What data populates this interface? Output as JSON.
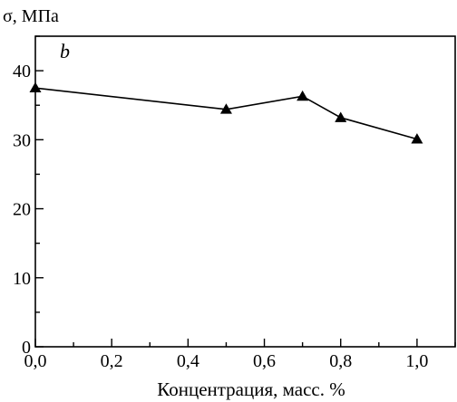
{
  "chart_data": {
    "type": "line",
    "ylabel": "σ, МПа",
    "xlabel": "Концентрация, масс. %",
    "panel_label": "b",
    "xlim": [
      0.0,
      1.1
    ],
    "ylim": [
      0,
      45
    ],
    "xticks": [
      0.0,
      0.2,
      0.4,
      0.6,
      0.8,
      1.0
    ],
    "xtick_labels": [
      "0,0",
      "0,2",
      "0,4",
      "0,6",
      "0,8",
      "1,0"
    ],
    "yticks": [
      0,
      10,
      20,
      30,
      40
    ],
    "ytick_labels": [
      "0",
      "10",
      "20",
      "30",
      "40"
    ],
    "grid": false,
    "marker": "triangle",
    "series": [
      {
        "x": [
          0.0,
          0.5,
          0.7,
          0.8,
          1.0
        ],
        "y": [
          37.5,
          34.4,
          36.3,
          33.2,
          30.1
        ]
      }
    ]
  }
}
